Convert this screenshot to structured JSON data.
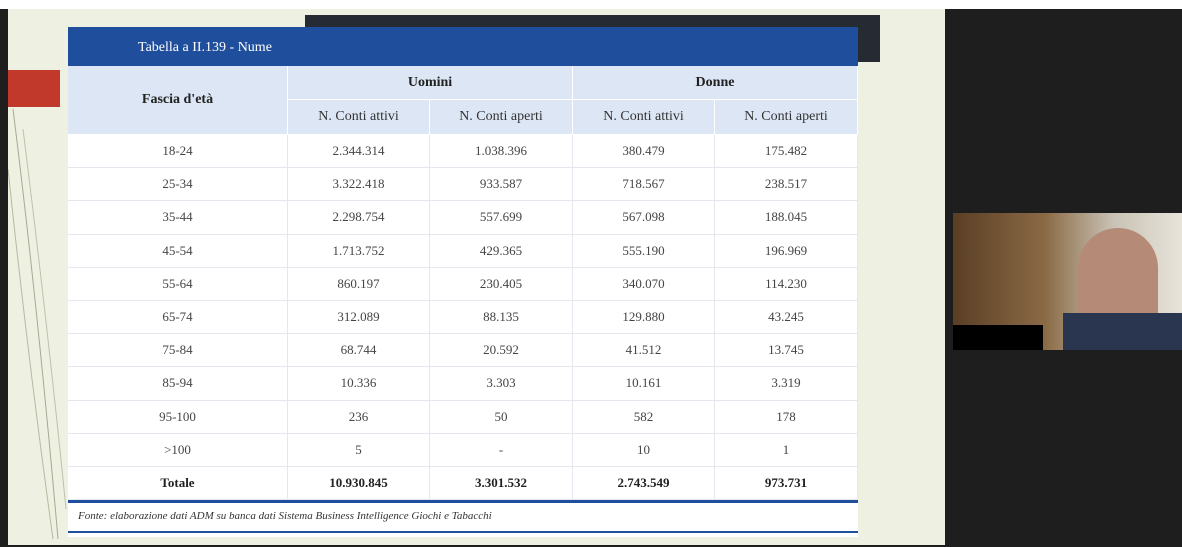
{
  "table": {
    "title": "Tabella a II.139 - Nume",
    "row_header": "Fascia d'età",
    "groups": [
      "Uomini",
      "Donne"
    ],
    "subheaders": [
      "N. Conti attivi",
      "N. Conti aperti",
      "N. Conti attivi",
      "N. Conti aperti"
    ],
    "rows": [
      [
        "18-24",
        "2.344.314",
        "1.038.396",
        "380.479",
        "175.482"
      ],
      [
        "25-34",
        "3.322.418",
        "933.587",
        "718.567",
        "238.517"
      ],
      [
        "35-44",
        "2.298.754",
        "557.699",
        "567.098",
        "188.045"
      ],
      [
        "45-54",
        "1.713.752",
        "429.365",
        "555.190",
        "196.969"
      ],
      [
        "55-64",
        "860.197",
        "230.405",
        "340.070",
        "114.230"
      ],
      [
        "65-74",
        "312.089",
        "88.135",
        "129.880",
        "43.245"
      ],
      [
        "75-84",
        "68.744",
        "20.592",
        "41.512",
        "13.745"
      ],
      [
        "85-94",
        "10.336",
        "3.303",
        "10.161",
        "3.319"
      ],
      [
        "95-100",
        "236",
        "50",
        "582",
        "178"
      ],
      [
        ">100",
        "5",
        "-",
        "10",
        "1"
      ]
    ],
    "total": [
      "Totale",
      "10.930.845",
      "3.301.532",
      "2.743.549",
      "973.731"
    ],
    "source": "Fonte: elaborazione dati ADM su banca dati Sistema Business Intelligence Giochi e Tabacchi"
  }
}
